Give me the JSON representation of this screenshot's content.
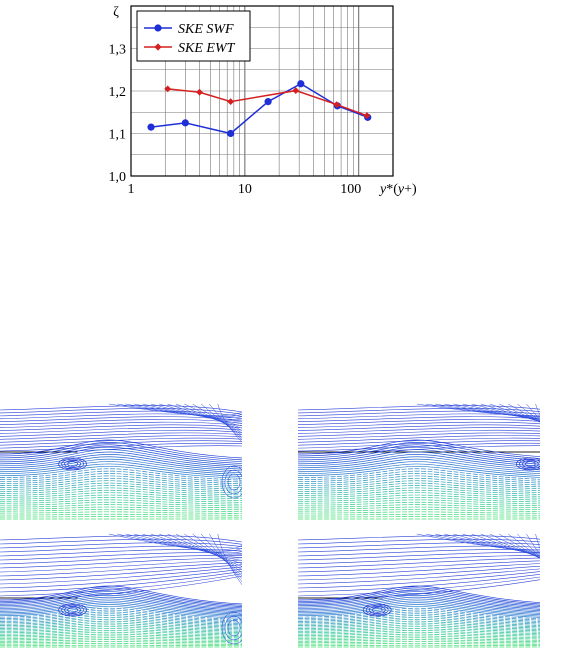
{
  "chart_data": {
    "type": "line",
    "xscale": "log",
    "xlim": [
      1,
      200
    ],
    "ylim": [
      1.0,
      1.4
    ],
    "x_ticks": [
      "1",
      "10",
      "100"
    ],
    "y_ticks": [
      "1,0",
      "1,1",
      "1,2",
      "1,3"
    ],
    "ylabel": "ζ",
    "xlabel": "y*(y+)",
    "xlabel_parts": {
      "a": "y",
      "b": "*(",
      "c": "y",
      "d": "+)"
    },
    "grid": true,
    "legend_position": "top-left",
    "series": [
      {
        "name": "SKE SWF",
        "color": "#1f2fd8",
        "marker": "circle",
        "x": [
          1.5,
          3,
          7.5,
          16,
          31,
          65,
          120
        ],
        "y": [
          1.115,
          1.125,
          1.1,
          1.175,
          1.217,
          1.165,
          1.138
        ]
      },
      {
        "name": "SKE EWT",
        "color": "#d42020",
        "marker": "diamond",
        "x": [
          2.1,
          4,
          7.5,
          28,
          64,
          118
        ],
        "y": [
          1.205,
          1.197,
          1.175,
          1.201,
          1.168,
          1.142
        ]
      }
    ]
  },
  "figures": {
    "line_color_top": "#1f3fd8",
    "line_color_mid": "#2b7fd0",
    "line_color_low": "#2fc0a0",
    "line_color_bottom": "#40e070",
    "panels": [
      {
        "id": "panel-top-left",
        "variant": "a"
      },
      {
        "id": "panel-top-right",
        "variant": "b"
      },
      {
        "id": "panel-bottom-left",
        "variant": "c"
      },
      {
        "id": "panel-bottom-right",
        "variant": "d"
      }
    ]
  }
}
